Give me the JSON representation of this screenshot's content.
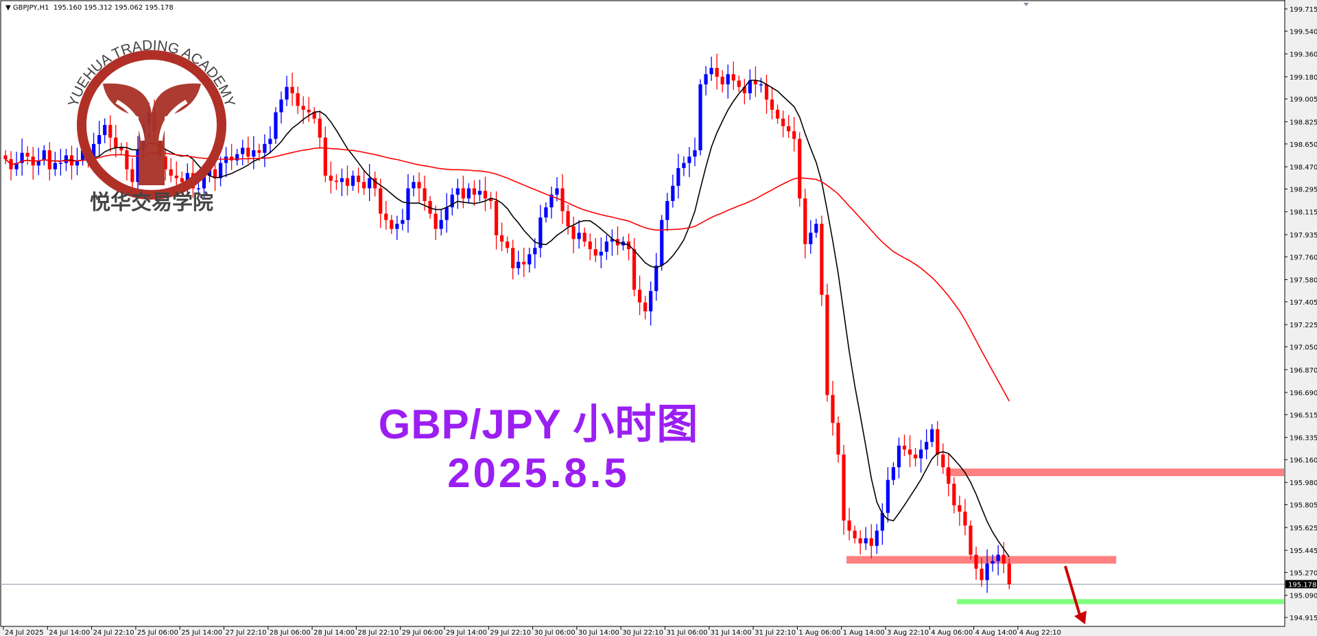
{
  "header": {
    "symbol": "GBPJPY,H1",
    "ohlc": "195.160 195.312 195.062 195.178"
  },
  "overlay": {
    "title": "GBP/JPY 小时图",
    "date": "2025.8.5"
  },
  "logo": {
    "text_en": "YUEHUA TRADING ACADEMY",
    "text_cn": "悦华交易学院"
  },
  "colors": {
    "up": "#0000ff",
    "down": "#ff0000",
    "ma_fast": "#000000",
    "ma_slow": "#ff0000",
    "resistance_zone": "#ff8080",
    "support_zone": "#80ff80",
    "title": "#9b1ff2",
    "arrow": "#cc0000"
  },
  "chart_data": {
    "type": "candlestick",
    "timeframe": "H1",
    "ylim": [
      194.85,
      199.75
    ],
    "y_ticks": [
      "199.715",
      "199.540",
      "199.360",
      "199.180",
      "199.005",
      "198.825",
      "198.650",
      "198.470",
      "198.295",
      "198.115",
      "197.935",
      "197.760",
      "197.580",
      "197.405",
      "197.225",
      "197.050",
      "196.870",
      "196.690",
      "196.515",
      "196.335",
      "196.160",
      "195.980",
      "195.805",
      "195.625",
      "195.445",
      "195.270",
      "195.090",
      "194.915"
    ],
    "x_ticks": [
      "24 Jul 2025",
      "24 Jul 14:00",
      "24 Jul 22:10",
      "25 Jul 06:00",
      "25 Jul 14:00",
      "27 Jul 22:10",
      "28 Jul 06:00",
      "28 Jul 14:00",
      "28 Jul 22:10",
      "29 Jul 06:00",
      "29 Jul 14:00",
      "29 Jul 22:10",
      "30 Jul 06:00",
      "30 Jul 14:00",
      "30 Jul 22:10",
      "31 Jul 06:00",
      "31 Jul 14:00",
      "31 Jul 22:10",
      "1 Aug 06:00",
      "1 Aug 14:00",
      "3 Aug 22:10",
      "4 Aug 06:00",
      "4 Aug 14:00",
      "4 Aug 22:10"
    ],
    "current_price": "195.178",
    "closes": [
      198.53,
      198.45,
      198.5,
      198.58,
      198.55,
      198.48,
      198.52,
      198.6,
      198.45,
      198.5,
      198.5,
      198.56,
      198.48,
      198.52,
      198.6,
      198.55,
      198.65,
      198.72,
      198.8,
      198.7,
      198.62,
      198.6,
      198.45,
      198.35,
      198.6,
      198.8,
      198.9,
      198.75,
      198.55,
      198.45,
      198.4,
      198.38,
      198.35,
      198.42,
      198.3,
      198.3,
      198.4,
      198.45,
      198.38,
      198.5,
      198.55,
      198.52,
      198.57,
      198.62,
      198.55,
      198.6,
      198.58,
      198.65,
      198.69,
      198.9,
      199.0,
      199.1,
      199.05,
      198.95,
      198.92,
      198.9,
      198.85,
      198.7,
      198.4,
      198.36,
      198.35,
      198.38,
      198.32,
      198.4,
      198.35,
      198.3,
      198.38,
      198.3,
      198.1,
      198.05,
      197.98,
      198.02,
      198.05,
      198.3,
      198.35,
      198.3,
      198.2,
      198.1,
      197.98,
      198.05,
      198.15,
      198.25,
      198.3,
      198.22,
      198.3,
      198.25,
      198.28,
      198.22,
      198.2,
      197.93,
      197.88,
      197.83,
      197.67,
      197.72,
      197.7,
      197.78,
      197.83,
      198.07,
      198.15,
      198.25,
      198.3,
      198.12,
      198.0,
      197.9,
      197.95,
      197.88,
      197.82,
      197.77,
      197.8,
      197.88,
      197.9,
      197.85,
      197.88,
      197.82,
      197.5,
      197.4,
      197.33,
      197.49,
      197.69,
      198.05,
      198.2,
      198.32,
      198.46,
      198.5,
      198.55,
      198.6,
      199.12,
      199.2,
      199.25,
      199.18,
      199.12,
      199.2,
      199.15,
      199.1,
      199.05,
      199.15,
      199.12,
      199.12,
      199.0,
      198.92,
      198.85,
      198.79,
      198.75,
      198.69,
      198.22,
      197.86,
      197.95,
      198.02,
      197.46,
      196.67,
      196.45,
      196.2,
      195.68,
      195.6,
      195.54,
      195.5,
      195.54,
      195.48,
      195.6,
      195.74,
      196.0,
      196.1,
      196.27,
      196.24,
      196.2,
      196.17,
      196.24,
      196.3,
      196.4,
      196.2,
      196.1,
      195.97,
      195.8,
      195.75,
      195.64,
      195.41,
      195.3,
      195.21,
      195.34,
      195.36,
      195.41,
      195.34,
      195.178
    ],
    "zones": [
      {
        "type": "resistance",
        "price_low": 196.03,
        "price_high": 196.09,
        "from_bar": 171
      },
      {
        "type": "resistance",
        "price_low": 195.34,
        "price_high": 195.4,
        "from_bar": 153
      },
      {
        "type": "support",
        "price_low": 195.02,
        "price_high": 195.06,
        "from_bar": 173
      }
    ],
    "indicators": [
      "moving average (black, fast)",
      "moving average (red, slow)"
    ],
    "annotation": "red arrow pointing down"
  }
}
